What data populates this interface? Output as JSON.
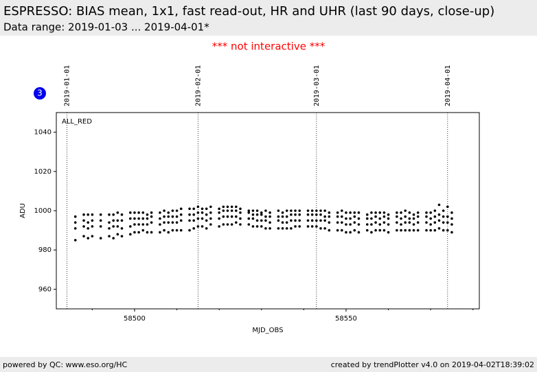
{
  "header": {
    "title": "ESPRESSO: BIAS mean, 1x1, fast read-out, HR and UHR (last 90 days, close-up)",
    "subtitle": "Data range: 2019-01-03 ... 2019-04-01*"
  },
  "notice": "*** not interactive ***",
  "badge": "3",
  "footer": {
    "left": "powered by QC: www.eso.org/HC",
    "right": "created by trendPlotter v4.0 on 2019-04-02T18:39:02"
  },
  "chart_data": {
    "type": "scatter",
    "panel_label": "ALL_RED",
    "xlabel": "MJD_OBS",
    "ylabel": "ADU",
    "xlim": [
      58481.5,
      58581.5
    ],
    "ylim": [
      950,
      1050
    ],
    "xticks": [
      58500,
      58550
    ],
    "xminorticks": [
      58490,
      58510,
      58520,
      58530,
      58540,
      58560,
      58570,
      58580
    ],
    "yticks": [
      960,
      980,
      1000,
      1020,
      1040
    ],
    "vlines": [
      {
        "x": 58484,
        "label": "2019-01-01"
      },
      {
        "x": 58515,
        "label": "2019-02-01"
      },
      {
        "x": 58543,
        "label": "2019-03-01"
      },
      {
        "x": 58574,
        "label": "2019-04-01"
      }
    ],
    "series": [
      {
        "color": "#000000",
        "x": [
          58486,
          58488,
          58489,
          58490,
          58492,
          58494,
          58495,
          58496,
          58497,
          58499,
          58500,
          58501,
          58502,
          58503,
          58504,
          58506,
          58507,
          58508,
          58509,
          58510,
          58511,
          58513,
          58514,
          58515,
          58516,
          58517,
          58518,
          58520,
          58521,
          58522,
          58523,
          58524,
          58525,
          58527,
          58528,
          58529,
          58530,
          58531,
          58532,
          58534,
          58535,
          58536,
          58537,
          58538,
          58539,
          58541,
          58542,
          58543,
          58544,
          58545,
          58546,
          58548,
          58549,
          58550,
          58551,
          58552,
          58553,
          58555,
          58556,
          58557,
          58558,
          58559,
          58560,
          58562,
          58563,
          58564,
          58565,
          58566,
          58567,
          58569,
          58570,
          58571,
          58572,
          58573,
          58574,
          58575
        ],
        "y": [
          [
            985,
            991,
            994,
            997
          ],
          [
            987,
            992,
            995,
            998
          ],
          [
            986,
            991,
            994,
            998
          ],
          [
            987,
            992,
            995,
            998
          ],
          [
            986,
            992,
            995,
            998
          ],
          [
            987,
            991,
            994,
            998
          ],
          [
            986,
            992,
            995,
            998
          ],
          [
            988,
            992,
            995,
            999
          ],
          [
            987,
            991,
            995,
            998
          ],
          [
            988,
            992,
            996,
            999
          ],
          [
            989,
            993,
            996,
            999
          ],
          [
            989,
            993,
            996,
            999
          ],
          [
            990,
            993,
            996,
            999
          ],
          [
            989,
            993,
            996,
            998
          ],
          [
            989,
            994,
            997,
            999
          ],
          [
            989,
            993,
            996,
            999
          ],
          [
            990,
            994,
            997,
            1000
          ],
          [
            989,
            994,
            997,
            999
          ],
          [
            990,
            994,
            997,
            1000
          ],
          [
            990,
            994,
            997,
            1000
          ],
          [
            990,
            995,
            998,
            1001
          ],
          [
            990,
            995,
            998,
            1001
          ],
          [
            991,
            995,
            998,
            1001
          ],
          [
            992,
            996,
            999,
            1002
          ],
          [
            992,
            996,
            999,
            1001
          ],
          [
            991,
            995,
            998,
            1001
          ],
          [
            993,
            996,
            999,
            1002
          ],
          [
            992,
            996,
            999,
            1001
          ],
          [
            993,
            997,
            1000,
            1002
          ],
          [
            993,
            997,
            1000,
            1002
          ],
          [
            993,
            997,
            1000,
            1002
          ],
          [
            994,
            997,
            1000,
            1002
          ],
          [
            993,
            996,
            999,
            1001
          ],
          [
            993,
            996,
            999,
            1000
          ],
          [
            992,
            996,
            998,
            1000
          ],
          [
            992,
            995,
            998,
            1000
          ],
          [
            992,
            995,
            998,
            999
          ],
          [
            991,
            995,
            997,
            1000
          ],
          [
            991,
            994,
            997,
            999
          ],
          [
            991,
            995,
            997,
            1000
          ],
          [
            991,
            994,
            997,
            999
          ],
          [
            991,
            994,
            997,
            1000
          ],
          [
            991,
            995,
            998,
            1000
          ],
          [
            992,
            995,
            998,
            1000
          ],
          [
            992,
            995,
            998,
            1000
          ],
          [
            992,
            995,
            998,
            1000
          ],
          [
            992,
            995,
            998,
            1000
          ],
          [
            992,
            995,
            998,
            1000
          ],
          [
            991,
            995,
            998,
            1000
          ],
          [
            991,
            995,
            997,
            1000
          ],
          [
            990,
            994,
            997,
            999
          ],
          [
            990,
            994,
            997,
            999
          ],
          [
            990,
            994,
            997,
            1000
          ],
          [
            989,
            993,
            996,
            999
          ],
          [
            989,
            993,
            996,
            999
          ],
          [
            990,
            994,
            997,
            999
          ],
          [
            989,
            993,
            996,
            999
          ],
          [
            990,
            993,
            996,
            998
          ],
          [
            989,
            993,
            996,
            999
          ],
          [
            990,
            994,
            997,
            999
          ],
          [
            990,
            993,
            996,
            999
          ],
          [
            990,
            994,
            997,
            999
          ],
          [
            989,
            993,
            996,
            998
          ],
          [
            990,
            994,
            997,
            999
          ],
          [
            990,
            993,
            996,
            999
          ],
          [
            990,
            994,
            997,
            1000
          ],
          [
            990,
            994,
            996,
            999
          ],
          [
            990,
            993,
            996,
            998
          ],
          [
            990,
            994,
            997,
            999
          ],
          [
            990,
            994,
            997,
            999
          ],
          [
            990,
            993,
            996,
            999
          ],
          [
            990,
            994,
            997,
            1000
          ],
          [
            991,
            995,
            998,
            1003
          ],
          [
            990,
            994,
            997,
            1000
          ],
          [
            990,
            994,
            997,
            1002
          ],
          [
            989,
            993,
            996,
            999
          ]
        ]
      }
    ]
  }
}
